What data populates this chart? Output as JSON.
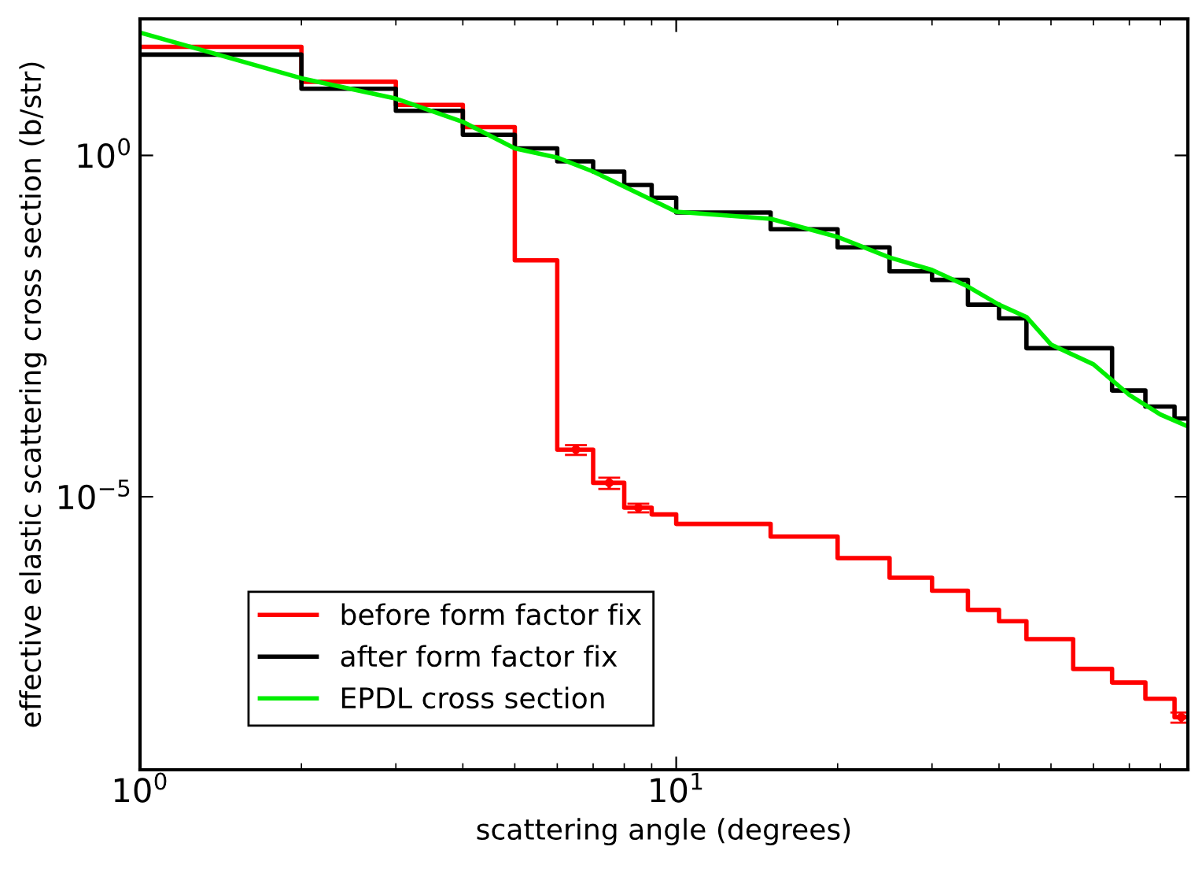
{
  "chart_data": {
    "type": "step",
    "xlabel": "scattering angle (degrees)",
    "ylabel": "effective elastic scattering cross section (b/str)",
    "log": "xy",
    "xlim": [
      1,
      90
    ],
    "ylim": [
      1e-09,
      100
    ],
    "xticks": [
      {
        "value": 1,
        "label": "10$^{0}$"
      },
      {
        "value": 10,
        "label": "10$^{1}$"
      }
    ],
    "yticks": [
      {
        "value": 1,
        "label": "10$^{0}$"
      },
      {
        "value": 1e-05,
        "label": "10$^{−5}$"
      }
    ],
    "grid": false,
    "legend": "bottom left",
    "x": [
      1,
      2,
      3,
      4,
      5,
      6,
      7,
      8,
      9,
      10,
      15,
      20,
      25,
      30,
      35,
      40,
      45,
      50,
      55,
      60,
      65,
      70,
      75,
      80,
      85,
      90
    ],
    "series": [
      {
        "name": "before form factor fix",
        "color": "#ff0000",
        "values": [
          39,
          12,
          5.5,
          2.6,
          0.029,
          4.9e-05,
          1.6e-05,
          6.9e-06,
          5.5e-06,
          4e-06,
          2.6e-06,
          1.26e-06,
          6.5e-07,
          4.2e-07,
          2.2e-07,
          1.5e-07,
          8.2e-08,
          8.2e-08,
          3e-08,
          3e-08,
          1.9e-08,
          1.9e-08,
          1.1e-08,
          1.1e-08,
          5.9e-09,
          5.9e-09
        ]
      },
      {
        "type": "scatter",
        "marker": "circle",
        "color": "#ff0000",
        "x": [
          6.5,
          7.5,
          8.5,
          87.5
        ],
        "values": [
          4.9e-05,
          1.6e-05,
          6.9e-06,
          5.9e-09
        ],
        "errors": [
          8e-06,
          3e-06,
          1e-06,
          1e-09
        ]
      },
      {
        "name": "after form factor fix",
        "color": "#000000",
        "values": [
          30,
          9.5,
          4.5,
          2.0,
          1.27,
          0.82,
          0.58,
          0.37,
          0.24,
          0.146,
          0.083,
          0.045,
          0.02,
          0.015,
          0.0065,
          0.0041,
          0.0015,
          0.0015,
          0.0015,
          0.0015,
          0.00036,
          0.00036,
          0.00021,
          0.00021,
          0.00014,
          0.00014
        ]
      },
      {
        "name": "EPDL cross section",
        "color": "#00ee00",
        "type": "line",
        "x": [
          1,
          2,
          3,
          4,
          5,
          6,
          7,
          10,
          15,
          20,
          25,
          30,
          35,
          40,
          45,
          50,
          60,
          70,
          80,
          90
        ],
        "values": [
          63,
          13.5,
          6.8,
          3.1,
          1.27,
          0.93,
          0.58,
          0.15,
          0.118,
          0.064,
          0.032,
          0.021,
          0.012,
          0.0065,
          0.0043,
          0.0017,
          0.00087,
          0.00031,
          0.00016,
          0.000107
        ]
      }
    ]
  }
}
